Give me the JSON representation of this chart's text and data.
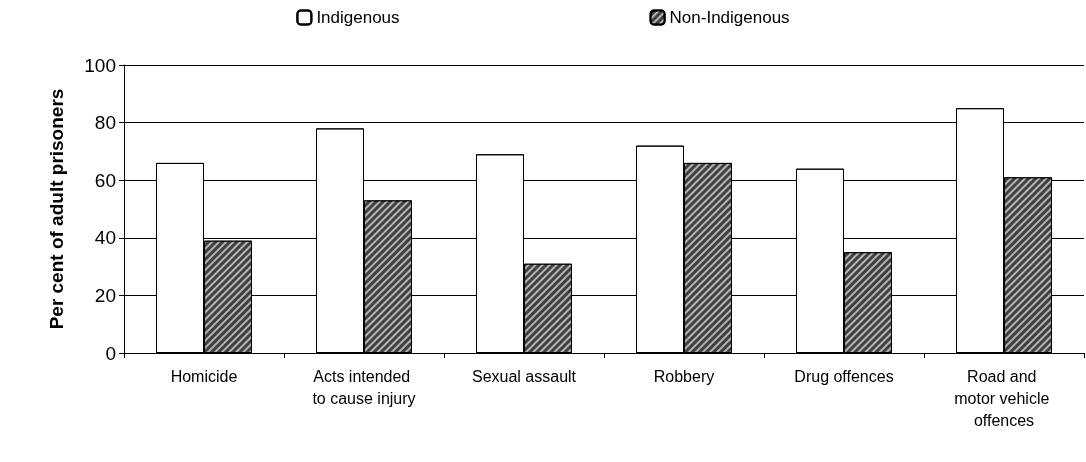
{
  "chart_data": {
    "type": "bar",
    "ylabel": "Per cent of adult prisoners",
    "categories": [
      "Homicide",
      "Acts intended to cause injury",
      "Sexual assault",
      "Robbery",
      "Drug offences",
      "Road and motor vehicle offences"
    ],
    "series": [
      {
        "name": "Indigenous",
        "color": "#ffffff",
        "values": [
          66,
          78,
          69,
          72,
          64,
          85
        ]
      },
      {
        "name": "Non-Indigenous",
        "color": "#404040",
        "values": [
          39,
          53,
          31,
          66,
          35,
          61
        ]
      }
    ],
    "ylim": [
      0,
      100
    ],
    "yticks": [
      0,
      20,
      40,
      60,
      80,
      100
    ],
    "grid": "y",
    "legend": "top"
  }
}
